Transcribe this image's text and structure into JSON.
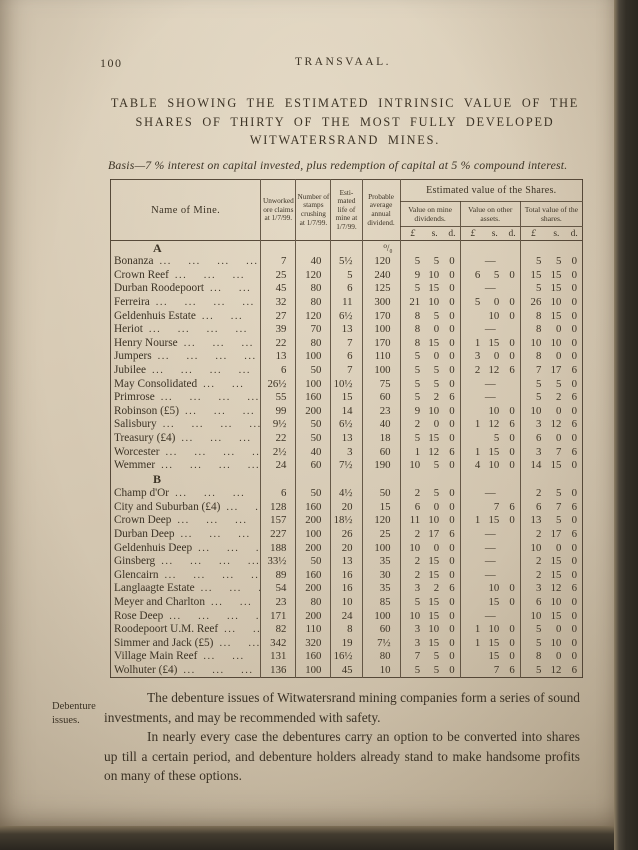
{
  "page": {
    "number": "100",
    "running_title": "TRANSVAAL."
  },
  "title_lines": [
    "TABLE SHOWING THE ESTIMATED INTRINSIC VALUE OF THE",
    "SHARES OF THIRTY OF THE MOST FULLY DEVELOPED",
    "WITWATERSRAND MINES."
  ],
  "basis": "Basis—7 % interest on capital invested, plus redemption of capital at 5 % compound interest.",
  "table": {
    "leader_dots": "...    ...    ...    ...    ...    ...",
    "headers": {
      "name": "Name of Mine.",
      "claims": "Unworked ore claims at 1/7/99.",
      "stamps": "Number of stamps crushing at 1/7/99.",
      "life": "Esti- mated life of mine at 1/7/99.",
      "dividend": "Probable average annual dividend.",
      "est_value": "Estimated value of the Shares.",
      "sub": [
        "Value on mine dividends.",
        "Value on other assets.",
        "Total value of the shares."
      ],
      "lsd": [
        "£",
        "s.",
        "d."
      ]
    },
    "sections": [
      {
        "label": "A",
        "pct": "⁰/₀",
        "rows": [
          {
            "n": "Bonanza",
            "c": "7",
            "s": "40",
            "l": "5½",
            "d": "120",
            "m": [
              "5",
              "5",
              "0"
            ],
            "o": null,
            "t": [
              "5",
              "5",
              "0"
            ]
          },
          {
            "n": "Crown Reef",
            "c": "25",
            "s": "120",
            "l": "5",
            "d": "240",
            "m": [
              "9",
              "10",
              "0"
            ],
            "o": [
              "6",
              "5",
              "0"
            ],
            "t": [
              "15",
              "15",
              "0"
            ]
          },
          {
            "n": "Durban Roodepoort",
            "c": "45",
            "s": "80",
            "l": "6",
            "d": "125",
            "m": [
              "5",
              "15",
              "0"
            ],
            "o": null,
            "t": [
              "5",
              "15",
              "0"
            ]
          },
          {
            "n": "Ferreira",
            "c": "32",
            "s": "80",
            "l": "11",
            "d": "300",
            "m": [
              "21",
              "10",
              "0"
            ],
            "o": [
              "5",
              "0",
              "0"
            ],
            "t": [
              "26",
              "10",
              "0"
            ]
          },
          {
            "n": "Geldenhuis Estate",
            "c": "27",
            "s": "120",
            "l": "6½",
            "d": "170",
            "m": [
              "8",
              "5",
              "0"
            ],
            "o": [
              "",
              "10",
              "0"
            ],
            "t": [
              "8",
              "15",
              "0"
            ]
          },
          {
            "n": "Heriot",
            "c": "39",
            "s": "70",
            "l": "13",
            "d": "100",
            "m": [
              "8",
              "0",
              "0"
            ],
            "o": null,
            "t": [
              "8",
              "0",
              "0"
            ]
          },
          {
            "n": "Henry Nourse",
            "c": "22",
            "s": "80",
            "l": "7",
            "d": "170",
            "m": [
              "8",
              "15",
              "0"
            ],
            "o": [
              "1",
              "15",
              "0"
            ],
            "t": [
              "10",
              "10",
              "0"
            ]
          },
          {
            "n": "Jumpers",
            "c": "13",
            "s": "100",
            "l": "6",
            "d": "110",
            "m": [
              "5",
              "0",
              "0"
            ],
            "o": [
              "3",
              "0",
              "0"
            ],
            "t": [
              "8",
              "0",
              "0"
            ]
          },
          {
            "n": "Jubilee",
            "c": "6",
            "s": "50",
            "l": "7",
            "d": "100",
            "m": [
              "5",
              "5",
              "0"
            ],
            "o": [
              "2",
              "12",
              "6"
            ],
            "t": [
              "7",
              "17",
              "6"
            ]
          },
          {
            "n": "May Consolidated",
            "c": "26½",
            "s": "100",
            "l": "10½",
            "d": "75",
            "m": [
              "5",
              "5",
              "0"
            ],
            "o": null,
            "t": [
              "5",
              "5",
              "0"
            ]
          },
          {
            "n": "Primrose",
            "c": "55",
            "s": "160",
            "l": "15",
            "d": "60",
            "m": [
              "5",
              "2",
              "6"
            ],
            "o": null,
            "t": [
              "5",
              "2",
              "6"
            ]
          },
          {
            "n": "Robinson (£5)",
            "c": "99",
            "s": "200",
            "l": "14",
            "d": "23",
            "m": [
              "9",
              "10",
              "0"
            ],
            "o": [
              "",
              "10",
              "0"
            ],
            "t": [
              "10",
              "0",
              "0"
            ]
          },
          {
            "n": "Salisbury",
            "c": "9½",
            "s": "50",
            "l": "6½",
            "d": "40",
            "m": [
              "2",
              "0",
              "0"
            ],
            "o": [
              "1",
              "12",
              "6"
            ],
            "t": [
              "3",
              "12",
              "6"
            ]
          },
          {
            "n": "Treasury (£4)",
            "c": "22",
            "s": "50",
            "l": "13",
            "d": "18",
            "m": [
              "5",
              "15",
              "0"
            ],
            "o": [
              "",
              "5",
              "0"
            ],
            "t": [
              "6",
              "0",
              "0"
            ]
          },
          {
            "n": "Worcester",
            "c": "2½",
            "s": "40",
            "l": "3",
            "d": "60",
            "m": [
              "1",
              "12",
              "6"
            ],
            "o": [
              "1",
              "15",
              "0"
            ],
            "t": [
              "3",
              "7",
              "6"
            ]
          },
          {
            "n": "Wemmer",
            "c": "24",
            "s": "60",
            "l": "7½",
            "d": "190",
            "m": [
              "10",
              "5",
              "0"
            ],
            "o": [
              "4",
              "10",
              "0"
            ],
            "t": [
              "14",
              "15",
              "0"
            ]
          }
        ]
      },
      {
        "label": "B",
        "rows": [
          {
            "n": "Champ d'Or",
            "c": "6",
            "s": "50",
            "l": "4½",
            "d": "50",
            "m": [
              "2",
              "5",
              "0"
            ],
            "o": null,
            "t": [
              "2",
              "5",
              "0"
            ]
          },
          {
            "n": "City and Suburban (£4)",
            "c": "128",
            "s": "160",
            "l": "20",
            "d": "15",
            "m": [
              "6",
              "0",
              "0"
            ],
            "o": [
              "",
              "7",
              "6"
            ],
            "t": [
              "6",
              "7",
              "6"
            ]
          },
          {
            "n": "Crown Deep",
            "c": "157",
            "s": "200",
            "l": "18½",
            "d": "120",
            "m": [
              "11",
              "10",
              "0"
            ],
            "o": [
              "1",
              "15",
              "0"
            ],
            "t": [
              "13",
              "5",
              "0"
            ]
          },
          {
            "n": "Durban Deep",
            "c": "227",
            "s": "100",
            "l": "26",
            "d": "25",
            "m": [
              "2",
              "17",
              "6"
            ],
            "o": null,
            "t": [
              "2",
              "17",
              "6"
            ]
          },
          {
            "n": "Geldenhuis Deep",
            "c": "188",
            "s": "200",
            "l": "20",
            "d": "100",
            "m": [
              "10",
              "0",
              "0"
            ],
            "o": null,
            "t": [
              "10",
              "0",
              "0"
            ]
          },
          {
            "n": "Ginsberg",
            "c": "33½",
            "s": "50",
            "l": "13",
            "d": "35",
            "m": [
              "2",
              "15",
              "0"
            ],
            "o": null,
            "t": [
              "2",
              "15",
              "0"
            ]
          },
          {
            "n": "Glencairn",
            "c": "89",
            "s": "160",
            "l": "16",
            "d": "30",
            "m": [
              "2",
              "15",
              "0"
            ],
            "o": null,
            "t": [
              "2",
              "15",
              "0"
            ]
          },
          {
            "n": "Langlaagte Estate",
            "c": "54",
            "s": "200",
            "l": "16",
            "d": "35",
            "m": [
              "3",
              "2",
              "6"
            ],
            "o": [
              "",
              "10",
              "0"
            ],
            "t": [
              "3",
              "12",
              "6"
            ]
          },
          {
            "n": "Meyer and Charlton",
            "c": "23",
            "s": "80",
            "l": "10",
            "d": "85",
            "m": [
              "5",
              "15",
              "0"
            ],
            "o": [
              "",
              "15",
              "0"
            ],
            "t": [
              "6",
              "10",
              "0"
            ]
          },
          {
            "n": "Rose Deep",
            "c": "171",
            "s": "200",
            "l": "24",
            "d": "100",
            "m": [
              "10",
              "15",
              "0"
            ],
            "o": null,
            "t": [
              "10",
              "15",
              "0"
            ]
          },
          {
            "n": "Roodepoort U.M. Reef",
            "c": "82",
            "s": "110",
            "l": "8",
            "d": "60",
            "m": [
              "3",
              "10",
              "0"
            ],
            "o": [
              "1",
              "10",
              "0"
            ],
            "t": [
              "5",
              "0",
              "0"
            ]
          },
          {
            "n": "Simmer and Jack (£5)",
            "c": "342",
            "s": "320",
            "l": "19",
            "d": "7½",
            "m": [
              "3",
              "15",
              "0"
            ],
            "o": [
              "1",
              "15",
              "0"
            ],
            "t": [
              "5",
              "10",
              "0"
            ]
          },
          {
            "n": "Village Main Reef",
            "c": "131",
            "s": "160",
            "l": "16½",
            "d": "80",
            "m": [
              "7",
              "5",
              "0"
            ],
            "o": [
              "",
              "15",
              "0"
            ],
            "t": [
              "8",
              "0",
              "0"
            ]
          },
          {
            "n": "Wolhuter (£4)",
            "c": "136",
            "s": "100",
            "l": "45",
            "d": "10",
            "m": [
              "5",
              "5",
              "0"
            ],
            "o": [
              "",
              "7",
              "6"
            ],
            "t": [
              "5",
              "12",
              "6"
            ]
          }
        ]
      }
    ]
  },
  "margin_note": "Debenture issues.",
  "paragraphs": [
    "The debenture issues of Witwatersrand mining companies form a series of sound investments, and may be recommended with safety.",
    "In nearly every case the debentures carry an option to be converted into shares up till a certain period, and debenture holders already stand to make handsome profits on many of these options."
  ]
}
